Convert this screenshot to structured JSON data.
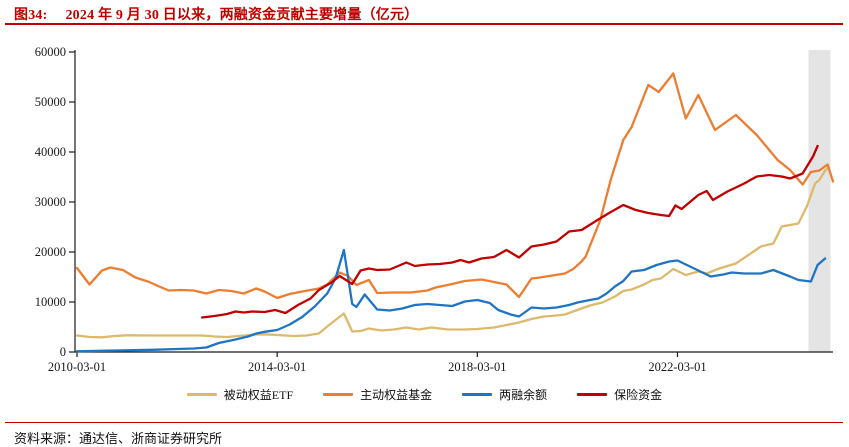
{
  "header": {
    "figure_label": "图34:",
    "caption": "2024 年 9 月 30 日以来，两融资金贡献主要增量（亿元）"
  },
  "footer": {
    "source": "资料来源：通达信、浙商证券研究所"
  },
  "colors": {
    "title_red": "#C00000",
    "rule_red": "#C00000",
    "axis_black": "#1a1a1a",
    "band_gray": "#E4E4E4"
  },
  "chart_data": {
    "type": "line",
    "title": "2024 年 9 月 30 日以来，两融资金贡献主要增量（亿元）",
    "unit": "亿元",
    "grid": false,
    "legend_position": "bottom",
    "x_axis": {
      "months_origin": "2010-03",
      "tick_months": [
        0,
        48,
        96,
        144
      ],
      "tick_labels": [
        "2010-03-01",
        "2014-03-01",
        "2018-03-01",
        "2022-03-01"
      ]
    },
    "y_axis": {
      "min": 0,
      "max": 60000,
      "step": 10000
    },
    "highlight_band": {
      "from_month": 175.4,
      "to_month": 180.7
    },
    "series": [
      {
        "id": "passive-equity-etf",
        "name": "被动权益ETF",
        "color": "#DDB96D",
        "points": [
          [
            0,
            3300
          ],
          [
            3,
            3000
          ],
          [
            6,
            2950
          ],
          [
            9,
            3200
          ],
          [
            12,
            3350
          ],
          [
            18,
            3300
          ],
          [
            24,
            3300
          ],
          [
            30,
            3300
          ],
          [
            33,
            3100
          ],
          [
            36,
            3000
          ],
          [
            40,
            3300
          ],
          [
            43,
            3500
          ],
          [
            45,
            3550
          ],
          [
            48,
            3400
          ],
          [
            52,
            3200
          ],
          [
            55,
            3300
          ],
          [
            58,
            3700
          ],
          [
            60,
            5100
          ],
          [
            62,
            6400
          ],
          [
            64,
            7700
          ],
          [
            66,
            4100
          ],
          [
            68,
            4200
          ],
          [
            70,
            4700
          ],
          [
            73,
            4300
          ],
          [
            76,
            4500
          ],
          [
            79,
            4900
          ],
          [
            82,
            4500
          ],
          [
            85,
            4900
          ],
          [
            89,
            4500
          ],
          [
            93,
            4500
          ],
          [
            96,
            4600
          ],
          [
            100,
            4900
          ],
          [
            103,
            5400
          ],
          [
            106,
            5900
          ],
          [
            109,
            6600
          ],
          [
            112,
            7100
          ],
          [
            115,
            7300
          ],
          [
            117,
            7500
          ],
          [
            120,
            8400
          ],
          [
            123,
            9300
          ],
          [
            126,
            9900
          ],
          [
            129,
            11100
          ],
          [
            131,
            12200
          ],
          [
            133,
            12500
          ],
          [
            136,
            13500
          ],
          [
            138,
            14400
          ],
          [
            140,
            14700
          ],
          [
            143,
            16600
          ],
          [
            146,
            15400
          ],
          [
            149,
            16100
          ],
          [
            151,
            15700
          ],
          [
            154,
            16700
          ],
          [
            158,
            17700
          ],
          [
            161,
            19400
          ],
          [
            164,
            21100
          ],
          [
            167,
            21700
          ],
          [
            169,
            25100
          ],
          [
            171,
            25400
          ],
          [
            173,
            25700
          ],
          [
            175,
            29100
          ],
          [
            177,
            33700
          ],
          [
            178,
            34400
          ],
          [
            179.5,
            36400
          ],
          [
            180.2,
            36800
          ]
        ]
      },
      {
        "id": "active-equity-fund",
        "name": "主动权益基金",
        "color": "#ED7D31",
        "points": [
          [
            0,
            16800
          ],
          [
            3,
            13500
          ],
          [
            6,
            16300
          ],
          [
            8,
            16900
          ],
          [
            11,
            16400
          ],
          [
            14,
            14900
          ],
          [
            17,
            14100
          ],
          [
            20,
            13000
          ],
          [
            22,
            12300
          ],
          [
            25,
            12400
          ],
          [
            28,
            12300
          ],
          [
            31,
            11700
          ],
          [
            34,
            12400
          ],
          [
            37,
            12200
          ],
          [
            40,
            11700
          ],
          [
            43,
            12700
          ],
          [
            45,
            12100
          ],
          [
            48,
            10800
          ],
          [
            51,
            11600
          ],
          [
            54,
            12100
          ],
          [
            58,
            12700
          ],
          [
            60,
            13500
          ],
          [
            63,
            15900
          ],
          [
            65,
            15200
          ],
          [
            67,
            13400
          ],
          [
            70,
            14400
          ],
          [
            72,
            11800
          ],
          [
            76,
            11900
          ],
          [
            80,
            11900
          ],
          [
            84,
            12300
          ],
          [
            86,
            12900
          ],
          [
            90,
            13600
          ],
          [
            93,
            14200
          ],
          [
            97,
            14500
          ],
          [
            100,
            14000
          ],
          [
            103,
            13500
          ],
          [
            106,
            11000
          ],
          [
            109,
            14700
          ],
          [
            111,
            14900
          ],
          [
            114,
            15300
          ],
          [
            117,
            15700
          ],
          [
            119,
            16600
          ],
          [
            121,
            18100
          ],
          [
            122,
            19100
          ],
          [
            125.5,
            26400
          ],
          [
            128,
            34500
          ],
          [
            131,
            42400
          ],
          [
            133,
            45000
          ],
          [
            137,
            53400
          ],
          [
            139.5,
            52000
          ],
          [
            143,
            55700
          ],
          [
            146,
            46700
          ],
          [
            149,
            51400
          ],
          [
            153,
            44400
          ],
          [
            158,
            47400
          ],
          [
            163,
            43400
          ],
          [
            168,
            38400
          ],
          [
            171,
            36400
          ],
          [
            174,
            33500
          ],
          [
            176,
            36000
          ],
          [
            178,
            36300
          ],
          [
            180,
            37500
          ],
          [
            181.3,
            34100
          ]
        ]
      },
      {
        "id": "margin-balance",
        "name": "两融余额",
        "color": "#1F74C4",
        "points": [
          [
            0,
            150
          ],
          [
            6,
            250
          ],
          [
            12,
            350
          ],
          [
            18,
            450
          ],
          [
            24,
            600
          ],
          [
            28,
            700
          ],
          [
            31,
            900
          ],
          [
            34,
            1800
          ],
          [
            38,
            2500
          ],
          [
            41,
            3100
          ],
          [
            43,
            3700
          ],
          [
            45,
            4050
          ],
          [
            48,
            4400
          ],
          [
            51,
            5500
          ],
          [
            54,
            7000
          ],
          [
            57,
            9100
          ],
          [
            60,
            11700
          ],
          [
            62,
            14700
          ],
          [
            64,
            20400
          ],
          [
            66,
            9600
          ],
          [
            67,
            9000
          ],
          [
            69,
            11500
          ],
          [
            72,
            8500
          ],
          [
            75,
            8300
          ],
          [
            78,
            8700
          ],
          [
            81,
            9400
          ],
          [
            84,
            9600
          ],
          [
            87,
            9400
          ],
          [
            90,
            9200
          ],
          [
            93,
            10100
          ],
          [
            96,
            10400
          ],
          [
            99,
            9800
          ],
          [
            101,
            8400
          ],
          [
            104,
            7500
          ],
          [
            106,
            7100
          ],
          [
            109,
            8900
          ],
          [
            112,
            8700
          ],
          [
            115,
            8900
          ],
          [
            118,
            9400
          ],
          [
            120,
            9900
          ],
          [
            123,
            10400
          ],
          [
            125,
            10700
          ],
          [
            127,
            11700
          ],
          [
            129,
            13100
          ],
          [
            131,
            14200
          ],
          [
            133,
            16100
          ],
          [
            136,
            16400
          ],
          [
            139,
            17400
          ],
          [
            142,
            18100
          ],
          [
            144,
            18300
          ],
          [
            148,
            16700
          ],
          [
            152,
            15100
          ],
          [
            155,
            15500
          ],
          [
            157,
            15900
          ],
          [
            160,
            15700
          ],
          [
            164,
            15700
          ],
          [
            167,
            16400
          ],
          [
            171,
            15100
          ],
          [
            173,
            14400
          ],
          [
            176,
            14100
          ],
          [
            177.6,
            17400
          ],
          [
            179.4,
            18700
          ]
        ]
      },
      {
        "id": "insurance-funds",
        "name": "保险资金",
        "color": "#C00000",
        "points": [
          [
            30,
            6900
          ],
          [
            33,
            7200
          ],
          [
            36,
            7600
          ],
          [
            38,
            8100
          ],
          [
            40,
            7900
          ],
          [
            42,
            8100
          ],
          [
            45,
            8000
          ],
          [
            47.5,
            8400
          ],
          [
            50,
            7800
          ],
          [
            53,
            9400
          ],
          [
            56,
            10700
          ],
          [
            58,
            12400
          ],
          [
            61,
            13900
          ],
          [
            63,
            15200
          ],
          [
            66,
            13600
          ],
          [
            68,
            16300
          ],
          [
            70,
            16700
          ],
          [
            72,
            16400
          ],
          [
            75,
            16500
          ],
          [
            79,
            17900
          ],
          [
            81,
            17200
          ],
          [
            84,
            17500
          ],
          [
            87,
            17600
          ],
          [
            90,
            17900
          ],
          [
            92,
            18400
          ],
          [
            94,
            17900
          ],
          [
            97,
            18700
          ],
          [
            100,
            19000
          ],
          [
            103,
            20400
          ],
          [
            106,
            18900
          ],
          [
            109,
            21100
          ],
          [
            112,
            21500
          ],
          [
            115,
            22100
          ],
          [
            118,
            24100
          ],
          [
            121,
            24400
          ],
          [
            125,
            26500
          ],
          [
            128,
            28000
          ],
          [
            131,
            29400
          ],
          [
            134,
            28400
          ],
          [
            137,
            27800
          ],
          [
            140,
            27400
          ],
          [
            142,
            27200
          ],
          [
            143.5,
            29300
          ],
          [
            145,
            28600
          ],
          [
            149,
            31400
          ],
          [
            151,
            32200
          ],
          [
            152.5,
            30400
          ],
          [
            156,
            32100
          ],
          [
            160,
            33700
          ],
          [
            163,
            35100
          ],
          [
            166,
            35400
          ],
          [
            169,
            35100
          ],
          [
            171,
            34700
          ],
          [
            174,
            35700
          ],
          [
            176.5,
            39100
          ],
          [
            177.6,
            41200
          ]
        ]
      }
    ]
  }
}
